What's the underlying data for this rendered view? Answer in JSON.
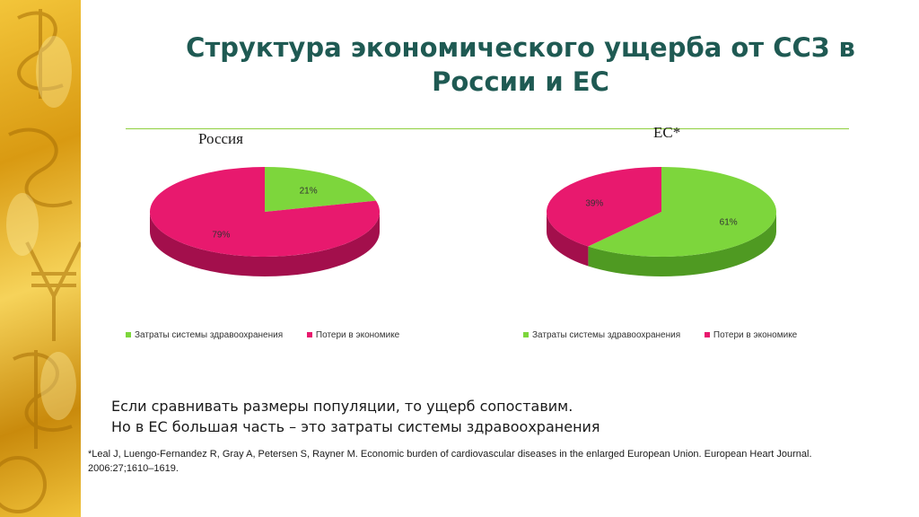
{
  "slide": {
    "title": "Структура экономического ущерба от ССЗ в России и ЕС",
    "note_line1": "Если сравнивать размеры популяции, то ущерб сопоставим.",
    "note_line2": "Но в ЕС большая часть – это затраты системы здравоохранения",
    "citation": "*Leal J,  Luengo-Fernandez R, Gray A, Petersen S, Rayner M.  Economic burden of cardiovascular diseases in the enlarged European Union. European Heart Journal. 2006:27;1610–1619."
  },
  "colors": {
    "health": "#7dd63c",
    "health_side": "#4f9a22",
    "loss": "#e8196e",
    "loss_side": "#a30f4c",
    "title": "#1f5a53"
  },
  "chart_data": [
    {
      "type": "pie",
      "title": "Россия",
      "categories": [
        "Затраты системы здравоохранения",
        "Потери в экономике"
      ],
      "values": [
        21,
        79
      ],
      "labels": [
        "21%",
        "79%"
      ],
      "legend": "bottom"
    },
    {
      "type": "pie",
      "title": "ЕС*",
      "categories": [
        "Затраты системы здравоохранения",
        "Потери в экономике"
      ],
      "values": [
        61,
        39
      ],
      "labels": [
        "61%",
        "39%"
      ],
      "legend": "bottom"
    }
  ]
}
